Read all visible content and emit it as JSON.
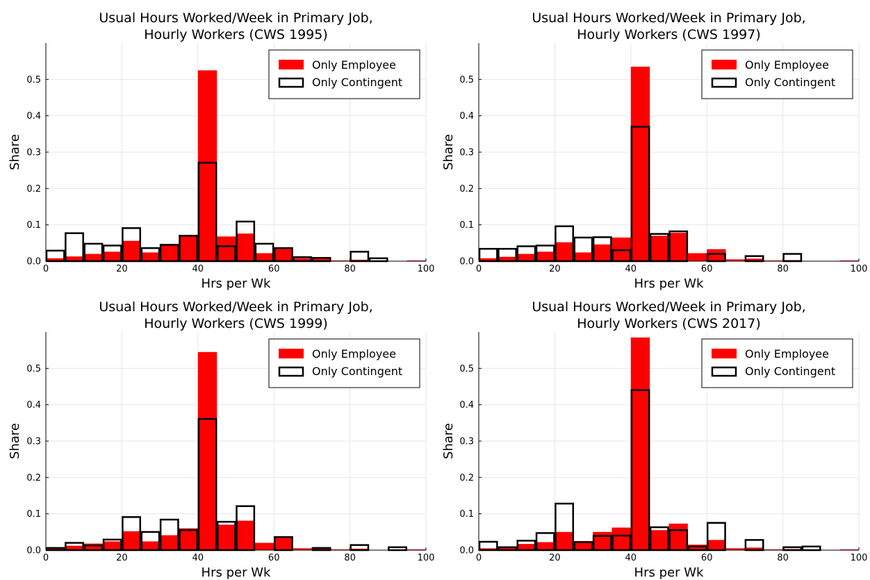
{
  "chart_data": [
    {
      "type": "bar",
      "title": [
        "Usual Hours Worked/Week in Primary Job,",
        "Hourly Workers (CWS 1995)"
      ],
      "xlabel": "Hrs per Wk",
      "ylabel": "Share",
      "xlim": [
        0,
        100
      ],
      "ylim": [
        0,
        0.6
      ],
      "xticks": [
        0,
        20,
        40,
        60,
        80,
        100
      ],
      "xtick_labels": [
        "0",
        "20",
        "40",
        "60",
        "80",
        "100"
      ],
      "yticks": [
        0,
        0.1,
        0.2,
        0.3,
        0.4,
        0.5
      ],
      "ytick_labels": [
        "0.0",
        "0.1",
        "0.2",
        "0.3",
        "0.4",
        "0.5"
      ],
      "grid": true,
      "legend": "top-right",
      "bin_edges": [
        0,
        5,
        10,
        15,
        20,
        25,
        30,
        35,
        40,
        45,
        50,
        55,
        60,
        65,
        70,
        75,
        80,
        85,
        90,
        95,
        100
      ],
      "series": [
        {
          "name": "Only Employee",
          "style": "filled",
          "color": "#ff0000",
          "values": [
            0.008,
            0.013,
            0.02,
            0.026,
            0.056,
            0.024,
            0.046,
            0.07,
            0.525,
            0.068,
            0.076,
            0.022,
            0.036,
            0.008,
            0.008,
            0.002,
            0.004,
            0.002,
            0.001,
            0.002
          ]
        },
        {
          "name": "Only Contingent",
          "style": "outline",
          "color": "#000000",
          "values": [
            0.029,
            0.077,
            0.048,
            0.043,
            0.091,
            0.036,
            0.045,
            0.07,
            0.271,
            0.041,
            0.109,
            0.048,
            0.036,
            0.011,
            0.009,
            0,
            0.026,
            0.008,
            0,
            0
          ]
        }
      ]
    },
    {
      "type": "bar",
      "title": [
        "Usual Hours Worked/Week in Primary Job,",
        "Hourly Workers (CWS 1997)"
      ],
      "xlabel": "Hrs per Wk",
      "ylabel": "Share",
      "xlim": [
        0,
        100
      ],
      "ylim": [
        0,
        0.6
      ],
      "xticks": [
        0,
        20,
        40,
        60,
        80,
        100
      ],
      "xtick_labels": [
        "0",
        "20",
        "40",
        "60",
        "80",
        "100"
      ],
      "yticks": [
        0,
        0.1,
        0.2,
        0.3,
        0.4,
        0.5
      ],
      "ytick_labels": [
        "0.0",
        "0.1",
        "0.2",
        "0.3",
        "0.4",
        "0.5"
      ],
      "grid": true,
      "legend": "top-right",
      "bin_edges": [
        0,
        5,
        10,
        15,
        20,
        25,
        30,
        35,
        40,
        45,
        50,
        55,
        60,
        65,
        70,
        75,
        80,
        85,
        90,
        95,
        100
      ],
      "series": [
        {
          "name": "Only Employee",
          "style": "filled",
          "color": "#ff0000",
          "values": [
            0.008,
            0.012,
            0.02,
            0.026,
            0.052,
            0.024,
            0.046,
            0.065,
            0.535,
            0.07,
            0.078,
            0.022,
            0.033,
            0.005,
            0.007,
            0.002,
            0.003,
            0.001,
            0.001,
            0.002
          ]
        },
        {
          "name": "Only Contingent",
          "style": "outline",
          "color": "#000000",
          "values": [
            0.034,
            0.034,
            0.041,
            0.043,
            0.096,
            0.065,
            0.066,
            0.03,
            0.37,
            0.075,
            0.082,
            0,
            0.02,
            0,
            0.014,
            0,
            0.02,
            0,
            0,
            0
          ]
        }
      ]
    },
    {
      "type": "bar",
      "title": [
        "Usual Hours Worked/Week in Primary Job,",
        "Hourly Workers (CWS 1999)"
      ],
      "xlabel": "Hrs per Wk",
      "ylabel": "Share",
      "xlim": [
        0,
        100
      ],
      "ylim": [
        0,
        0.6
      ],
      "xticks": [
        0,
        20,
        40,
        60,
        80,
        100
      ],
      "xtick_labels": [
        "0",
        "20",
        "40",
        "60",
        "80",
        "100"
      ],
      "yticks": [
        0,
        0.1,
        0.2,
        0.3,
        0.4,
        0.5
      ],
      "ytick_labels": [
        "0.0",
        "0.1",
        "0.2",
        "0.3",
        "0.4",
        "0.5"
      ],
      "grid": true,
      "legend": "top-right",
      "bin_edges": [
        0,
        5,
        10,
        15,
        20,
        25,
        30,
        35,
        40,
        45,
        50,
        55,
        60,
        65,
        70,
        75,
        80,
        85,
        90,
        95,
        100
      ],
      "series": [
        {
          "name": "Only Employee",
          "style": "filled",
          "color": "#ff0000",
          "values": [
            0.006,
            0.012,
            0.018,
            0.024,
            0.052,
            0.024,
            0.041,
            0.06,
            0.545,
            0.07,
            0.081,
            0.02,
            0.038,
            0.005,
            0.005,
            0.002,
            0.004,
            0.001,
            0.001,
            0.002
          ]
        },
        {
          "name": "Only Contingent",
          "style": "outline",
          "color": "#000000",
          "values": [
            0.006,
            0.02,
            0.013,
            0.029,
            0.091,
            0.05,
            0.084,
            0.055,
            0.361,
            0.078,
            0.121,
            0,
            0.036,
            0,
            0.006,
            0,
            0.014,
            0,
            0.008,
            0
          ]
        }
      ]
    },
    {
      "type": "bar",
      "title": [
        "Usual Hours Worked/Week in Primary Job,",
        "Hourly Workers (CWS 2017)"
      ],
      "xlabel": "Hrs per Wk",
      "ylabel": "Share",
      "xlim": [
        0,
        100
      ],
      "ylim": [
        0,
        0.6
      ],
      "xticks": [
        0,
        20,
        40,
        60,
        80,
        100
      ],
      "xtick_labels": [
        "0",
        "20",
        "40",
        "60",
        "80",
        "100"
      ],
      "yticks": [
        0,
        0.1,
        0.2,
        0.3,
        0.4,
        0.5
      ],
      "ytick_labels": [
        "0.0",
        "0.1",
        "0.2",
        "0.3",
        "0.4",
        "0.5"
      ],
      "grid": true,
      "legend": "top-right",
      "bin_edges": [
        0,
        5,
        10,
        15,
        20,
        25,
        30,
        35,
        40,
        45,
        50,
        55,
        60,
        65,
        70,
        75,
        80,
        85,
        90,
        95,
        100
      ],
      "series": [
        {
          "name": "Only Employee",
          "style": "filled",
          "color": "#ff0000",
          "values": [
            0.005,
            0.009,
            0.017,
            0.022,
            0.05,
            0.025,
            0.05,
            0.062,
            0.585,
            0.055,
            0.073,
            0.015,
            0.028,
            0.005,
            0.007,
            0.002,
            0.003,
            0.001,
            0.001,
            0.002
          ]
        },
        {
          "name": "Only Contingent",
          "style": "outline",
          "color": "#000000",
          "values": [
            0.023,
            0.008,
            0.026,
            0.047,
            0.128,
            0.022,
            0.039,
            0.04,
            0.44,
            0.063,
            0.055,
            0.01,
            0.075,
            0,
            0.028,
            0,
            0.008,
            0.01,
            0,
            0
          ]
        }
      ]
    }
  ]
}
